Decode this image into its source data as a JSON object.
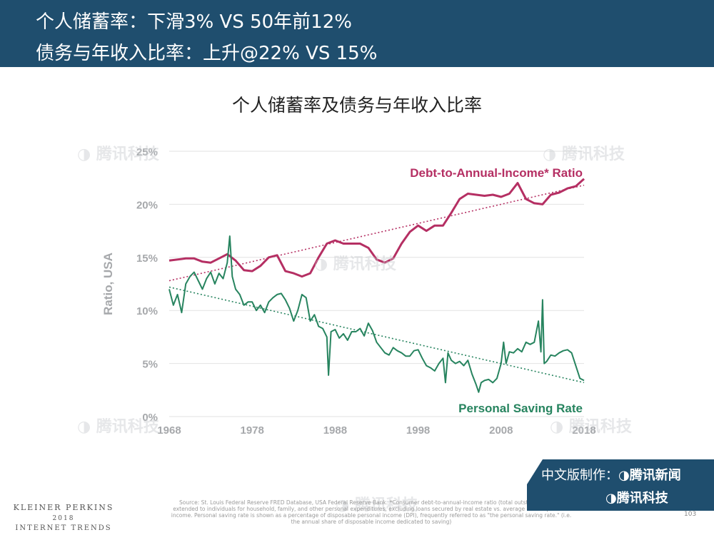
{
  "header": {
    "line1": "个人储蓄率：下滑3% VS 50年前12%",
    "line2": "债务与年收入比率：上升@22% VS 15%"
  },
  "watermark_text": "腾讯科技",
  "chart_data": {
    "type": "line",
    "title": "个人储蓄率及债务与年收入比率",
    "ylabel": "Ratio, USA",
    "xlabel": "",
    "xlim": [
      1968,
      2018
    ],
    "ylim": [
      0,
      25
    ],
    "x_ticks": [
      1968,
      1978,
      1988,
      1998,
      2008,
      2018
    ],
    "y_ticks": [
      0,
      5,
      10,
      15,
      20,
      25
    ],
    "y_tick_labels": [
      "0%",
      "5%",
      "10%",
      "15%",
      "20%",
      "25%"
    ],
    "grid": "horizontal",
    "series": [
      {
        "name": "Debt-to-Annual-Income* Ratio",
        "color": "#b52f63",
        "x": [
          1968,
          1970,
          1971,
          1972,
          1973,
          1974,
          1975,
          1976,
          1977,
          1978,
          1979,
          1980,
          1981,
          1982,
          1983,
          1984,
          1985,
          1986,
          1987,
          1988,
          1989,
          1990,
          1991,
          1992,
          1993,
          1994,
          1995,
          1996,
          1997,
          1998,
          1999,
          2000,
          2001,
          2002,
          2003,
          2004,
          2005,
          2006,
          2007,
          2008,
          2009,
          2010,
          2011,
          2012,
          2013,
          2014,
          2015,
          2016,
          2017,
          2018
        ],
        "y": [
          14.7,
          14.9,
          14.9,
          14.6,
          14.5,
          14.9,
          15.3,
          14.7,
          13.8,
          13.7,
          14.2,
          15.0,
          15.2,
          13.7,
          13.5,
          13.2,
          13.5,
          15.0,
          16.3,
          16.6,
          16.3,
          16.3,
          16.3,
          15.9,
          14.8,
          14.5,
          14.9,
          16.3,
          17.4,
          18.0,
          17.5,
          18.0,
          18.0,
          19.2,
          20.5,
          21.0,
          20.9,
          20.8,
          20.9,
          20.7,
          21.0,
          22.0,
          20.5,
          20.1,
          20.0,
          20.9,
          21.1,
          21.5,
          21.7,
          22.4
        ]
      },
      {
        "name": "Personal Saving Rate",
        "color": "#27845f",
        "x": [
          1968,
          1968.5,
          1969,
          1969.5,
          1970,
          1970.5,
          1971,
          1971.5,
          1972,
          1972.5,
          1973,
          1973.5,
          1974,
          1974.5,
          1975,
          1975.3,
          1975.6,
          1976,
          1976.5,
          1977,
          1977.5,
          1978,
          1978.5,
          1979,
          1979.5,
          1980,
          1980.5,
          1981,
          1981.5,
          1982,
          1982.5,
          1983,
          1983.5,
          1984,
          1984.5,
          1985,
          1985.5,
          1986,
          1986.5,
          1987,
          1987.2,
          1987.5,
          1988,
          1988.5,
          1989,
          1989.5,
          1990,
          1990.5,
          1991,
          1991.5,
          1992,
          1992.5,
          1993,
          1993.5,
          1994,
          1994.5,
          1995,
          1995.5,
          1996,
          1996.5,
          1997,
          1997.5,
          1998,
          1998.5,
          1999,
          1999.5,
          2000,
          2000.5,
          2001,
          2001.3,
          2001.6,
          2002,
          2002.5,
          2003,
          2003.5,
          2004,
          2004.5,
          2005,
          2005.3,
          2005.6,
          2006,
          2006.5,
          2007,
          2007.5,
          2008,
          2008.3,
          2008.6,
          2009,
          2009.5,
          2010,
          2010.5,
          2011,
          2011.5,
          2012,
          2012.5,
          2012.8,
          2013,
          2013.2,
          2013.5,
          2014,
          2014.5,
          2015,
          2015.5,
          2016,
          2016.5,
          2017,
          2017.5,
          2018
        ],
        "y": [
          12.0,
          10.5,
          11.5,
          9.8,
          12.5,
          13.2,
          13.6,
          12.8,
          12.0,
          13.0,
          13.6,
          12.5,
          13.5,
          13.0,
          14.5,
          17.0,
          13.2,
          12.0,
          11.5,
          10.5,
          10.8,
          10.8,
          10.0,
          10.5,
          9.8,
          10.8,
          11.2,
          11.5,
          11.6,
          11.0,
          10.2,
          9.0,
          10.0,
          11.5,
          11.2,
          9.0,
          9.6,
          8.5,
          8.3,
          7.5,
          3.9,
          8.0,
          8.2,
          7.4,
          7.8,
          7.2,
          8.0,
          8.0,
          8.3,
          7.6,
          8.8,
          8.1,
          7.0,
          6.5,
          6.0,
          5.8,
          6.5,
          6.2,
          6.0,
          5.7,
          5.7,
          6.2,
          6.3,
          5.5,
          4.8,
          4.6,
          4.3,
          5.0,
          5.5,
          3.2,
          6.0,
          5.3,
          5.0,
          5.2,
          4.8,
          5.3,
          4.0,
          3.0,
          2.3,
          3.2,
          3.4,
          3.5,
          3.2,
          3.6,
          5.0,
          7.0,
          5.0,
          6.1,
          6.0,
          6.4,
          6.1,
          7.0,
          6.8,
          7.0,
          9.0,
          6.1,
          11.0,
          5.0,
          5.2,
          5.8,
          5.7,
          6.0,
          6.2,
          6.3,
          6.0,
          4.8,
          3.6,
          3.4
        ],
        "trend_label_ends": [
          12.2,
          3.2
        ]
      }
    ],
    "debt_trend_ends": [
      12.8,
      21.8
    ]
  },
  "source_text": "Source: St. Louis Federal Reserve FRED Database, USA Federal Reserve Bank. *Consumer debt-to-annual-income ratio (total outstanding credit extended to individuals for household, family, and other personal expenditures, excluding loans secured by real estate vs. average annual personal income. Personal saving rate is shown as a percentage of disposable personal income (DPI), frequently referred to as \"the personal saving rate.\" (i.e. the annual share of disposable income dedicated to saving)",
  "footer": {
    "company": "KLEINER PERKINS",
    "year": "2018",
    "report": "INTERNET TRENDS"
  },
  "page_number": "103",
  "badge": {
    "line1": "中文版制作：",
    "line1_brand": "腾讯新闻",
    "line2": "腾讯科技"
  }
}
